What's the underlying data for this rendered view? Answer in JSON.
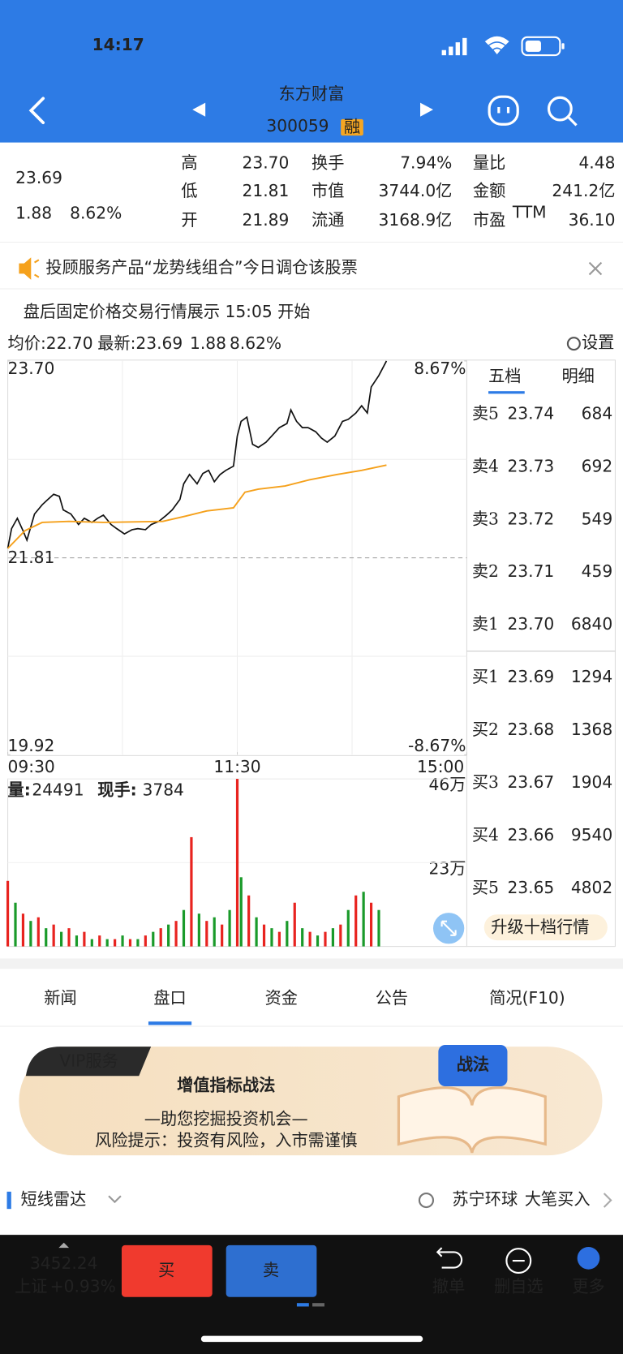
{
  "status_bar": {
    "time": "14:17"
  },
  "header": {
    "title": "东方财富",
    "code": "300059",
    "badge": "融"
  },
  "quote": {
    "price": "23.69",
    "change": "1.88",
    "pct": "8.62%",
    "stats": [
      [
        "高",
        "23.70"
      ],
      [
        "换手",
        "7.94%"
      ],
      [
        "量比",
        "4.48"
      ],
      [
        "低",
        "21.81"
      ],
      [
        "市值",
        "3744.0亿"
      ],
      [
        "金额",
        "241.2亿"
      ],
      [
        "开",
        "21.89"
      ],
      [
        "流通",
        "3168.9亿"
      ],
      [
        "市盈",
        "36.10"
      ]
    ],
    "ttm": "TTM"
  },
  "notice": "投顾服务产品“龙势线组合”今日调仓该股票",
  "after_hours": "盘后固定价格交易行情展示 15:05 开始",
  "chart_info": {
    "avg": "均价:22.70",
    "latest": "最新:23.69",
    "change": "1.88",
    "pct": "8.62%",
    "settings": "设置"
  },
  "chart_data": [
    {
      "type": "line",
      "xlim": [
        0,
        240
      ],
      "xticks": [
        {
          "value": 0,
          "label": "09:30"
        },
        {
          "value": 120,
          "label": "11:30"
        },
        {
          "value": 240,
          "label": "15:00"
        }
      ],
      "xgrid": [
        60,
        120,
        180
      ],
      "ylim": [
        19.92,
        23.7
      ],
      "yticks": [
        {
          "value": 23.7,
          "label": "23.70"
        },
        21.81,
        19.92
      ],
      "ygrid": [
        22.755,
        21.81,
        20.865
      ],
      "y2lim": [
        -8.67,
        8.67
      ],
      "y2ticks": [
        {
          "value": 8.67,
          "label": "8.67%"
        },
        {
          "value": -8.67,
          "label": "-8.67%"
        }
      ],
      "series": [
        {
          "color": "#111111",
          "x": [
            0,
            2,
            5,
            8,
            10,
            14,
            18,
            21,
            24,
            27,
            29,
            33,
            37,
            40,
            44,
            47,
            50,
            54,
            57,
            61,
            65,
            68,
            72,
            75,
            79,
            83,
            86,
            90,
            92,
            95,
            99,
            102,
            105,
            108,
            111,
            114,
            118,
            120,
            122,
            125,
            128,
            131,
            135,
            138,
            142,
            146,
            148,
            151,
            154,
            157,
            161,
            164,
            167,
            171,
            175,
            178,
            182,
            185,
            188,
            190,
            194,
            198
          ],
          "values": [
            21.9,
            22.09,
            22.19,
            22.07,
            21.98,
            22.23,
            22.32,
            22.37,
            22.42,
            22.4,
            22.27,
            22.23,
            22.13,
            22.19,
            22.15,
            22.19,
            22.22,
            22.13,
            22.09,
            22.04,
            22.08,
            22.09,
            22.08,
            22.13,
            22.16,
            22.22,
            22.27,
            22.37,
            22.52,
            22.61,
            22.52,
            22.62,
            22.65,
            22.54,
            22.61,
            22.65,
            22.69,
            22.98,
            23.12,
            23.16,
            22.9,
            22.87,
            22.92,
            22.98,
            23.06,
            23.1,
            23.23,
            23.12,
            23.06,
            23.06,
            23.02,
            22.96,
            22.92,
            22.98,
            23.12,
            23.14,
            23.2,
            23.27,
            23.2,
            23.45,
            23.56,
            23.7
          ]
        },
        {
          "color": "#f5a11c",
          "x": [
            0,
            9,
            18,
            32,
            50,
            81,
            93,
            104,
            118,
            124,
            131,
            145,
            158,
            172,
            185,
            198
          ],
          "values": [
            21.9,
            22.07,
            22.15,
            22.16,
            22.15,
            22.16,
            22.21,
            22.26,
            22.29,
            22.44,
            22.47,
            22.5,
            22.56,
            22.61,
            22.65,
            22.7
          ]
        }
      ]
    },
    {
      "type": "bar",
      "xlim": [
        0,
        240
      ],
      "ylim": [
        0,
        46
      ],
      "yticks": [
        {
          "value": 46,
          "label": "46万"
        },
        {
          "value": 23,
          "label": "23万"
        }
      ],
      "series": [
        {
          "color": "#e8231f",
          "x": [
            0,
            8,
            16,
            24,
            32,
            40,
            48,
            56,
            64,
            72,
            80,
            88,
            96,
            104,
            112,
            120,
            126,
            134,
            142,
            150,
            158,
            166,
            174,
            182,
            190
          ],
          "values": [
            18,
            9,
            8,
            6,
            5,
            4,
            3,
            2,
            2,
            3,
            5,
            7,
            30,
            7,
            6,
            46,
            14,
            6,
            4,
            12,
            4,
            4,
            6,
            14,
            12
          ]
        },
        {
          "color": "#1a9a2a",
          "x": [
            4,
            12,
            20,
            28,
            36,
            44,
            52,
            60,
            68,
            76,
            84,
            92,
            100,
            108,
            116,
            122,
            130,
            138,
            146,
            154,
            162,
            170,
            178,
            186,
            194
          ],
          "values": [
            12,
            7,
            5,
            4,
            3,
            2,
            2,
            3,
            2,
            4,
            6,
            10,
            9,
            8,
            10,
            19,
            8,
            5,
            7,
            5,
            3,
            5,
            10,
            15,
            10
          ]
        }
      ]
    }
  ],
  "volume_info": {
    "label": "量:",
    "value": "24491",
    "hand_label": "现手:",
    "hand": "3784"
  },
  "order_book": {
    "tabs": [
      "五档",
      "明细"
    ],
    "rows": [
      [
        "卖5",
        "23.74",
        "684"
      ],
      [
        "卖4",
        "23.73",
        "692"
      ],
      [
        "卖3",
        "23.72",
        "549"
      ],
      [
        "卖2",
        "23.71",
        "459"
      ],
      [
        "卖1",
        "23.70",
        "6840"
      ],
      [
        "买1",
        "23.69",
        "1294"
      ],
      [
        "买2",
        "23.68",
        "1368"
      ],
      [
        "买3",
        "23.67",
        "1904"
      ],
      [
        "买4",
        "23.66",
        "9540"
      ],
      [
        "买5",
        "23.65",
        "4802"
      ]
    ],
    "upgrade": "升级十档行情"
  },
  "tabs": [
    "新闻",
    "盘口",
    "资金",
    "公告",
    "简况(F10)"
  ],
  "banner": {
    "tag": "VIP服务",
    "title": "增值指标战法",
    "subtitle": "—助您挖掘投资机会—",
    "risk": "风险提示：投资有风险，入市需谨慎",
    "badge": "战法"
  },
  "radar": {
    "title": "短线雷达",
    "stock": "苏宁环球",
    "event": "大笔买入"
  },
  "bottom": {
    "index_value": "3452.24",
    "index_name": "上证",
    "index_change": "+0.93%",
    "buy": "买",
    "sell": "卖",
    "actions": [
      "撤单",
      "删自选",
      "更多"
    ]
  }
}
